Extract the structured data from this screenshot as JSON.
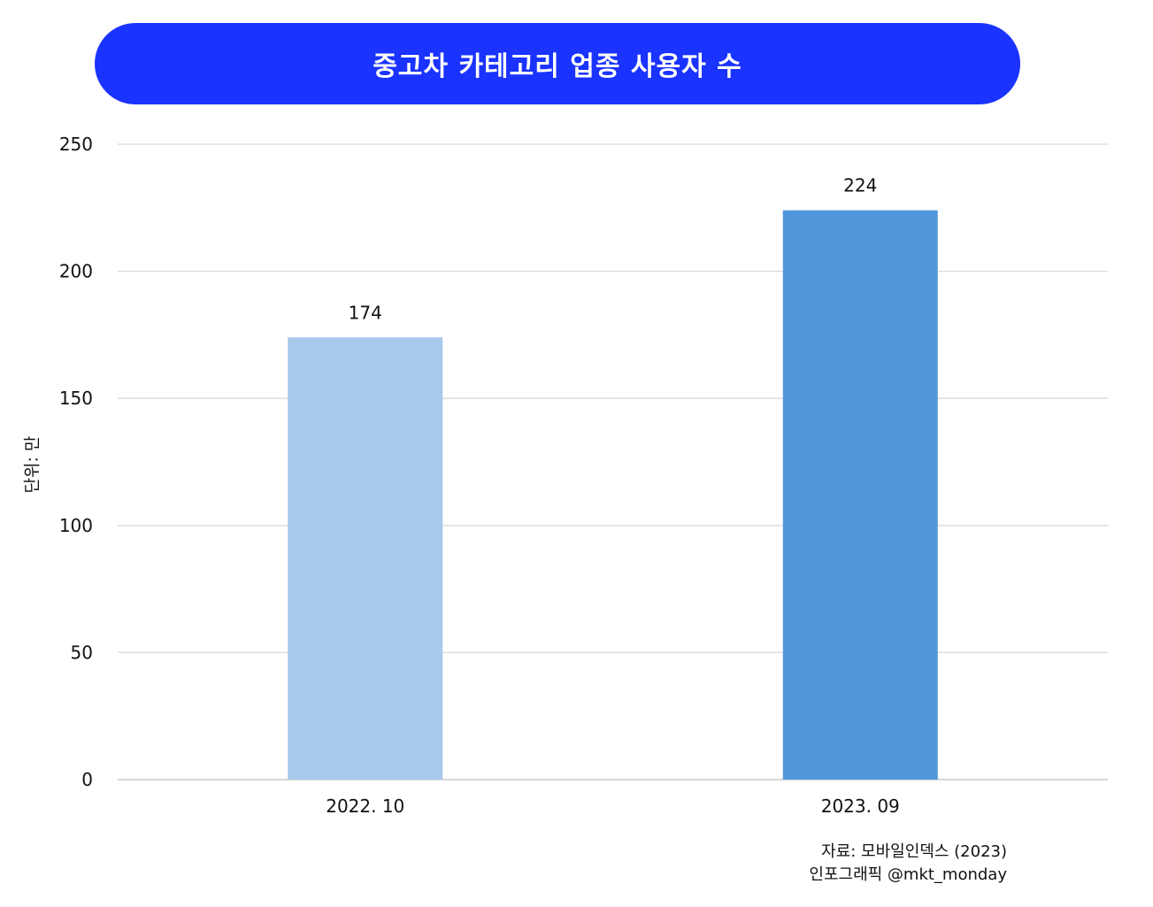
{
  "chart_data": {
    "type": "bar",
    "title": "중고차 카테고리 업종 사용자 수",
    "categories": [
      "2022. 10",
      "2023. 09"
    ],
    "values": [
      174,
      224
    ],
    "data_labels": [
      "174",
      "224"
    ],
    "ylabel": "단위: 만",
    "xlabel": "",
    "ylim": [
      0,
      250
    ],
    "yticks": [
      0,
      50,
      100,
      150,
      200,
      250
    ],
    "grid": true,
    "colors": [
      "#a7c9eb",
      "#5196da"
    ]
  },
  "source": {
    "line1": "자료: 모바일인덱스 (2023)",
    "line2": "인포그래픽 @mkt_monday"
  },
  "theme": {
    "title_bg": "#1a33ff",
    "title_fg": "#ffffff",
    "grid_color": "#d9d9d9"
  }
}
